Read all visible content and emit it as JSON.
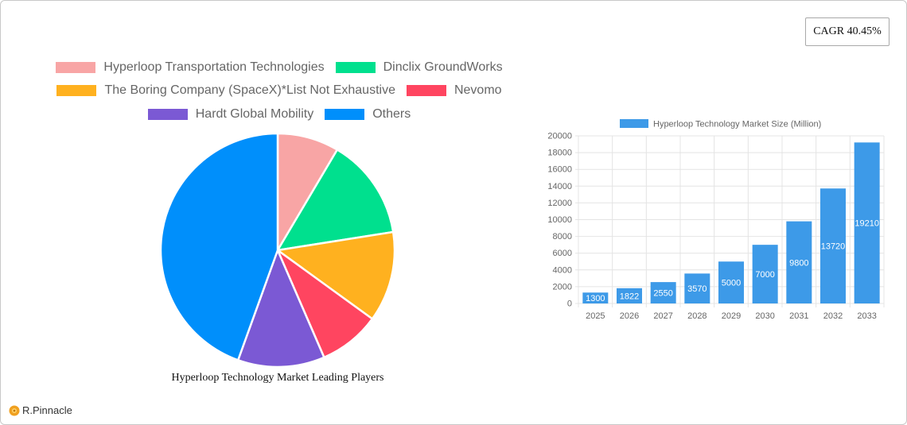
{
  "cagr_label": "CAGR 40.45%",
  "pie": {
    "title": "Hyperloop Technology Market Leading Players",
    "legend_rows": [
      [
        0,
        1
      ],
      [
        2,
        3
      ],
      [
        4,
        5
      ]
    ]
  },
  "bar": {
    "legend_label": "Hyperloop Technology Market Size (Million)"
  },
  "logo": {
    "text": "R.Pinnacle"
  },
  "chart_data": [
    {
      "type": "pie",
      "title": "Hyperloop Technology Market Leading Players",
      "labels": [
        "Hyperloop Transportation Technologies",
        "Dinclix GroundWorks",
        "The Boring Company (SpaceX)*List Not Exhaustive",
        "Nevomo",
        "Hardt Global Mobility",
        "Others"
      ],
      "values": [
        8.5,
        14,
        12.5,
        8.5,
        12,
        44.5
      ],
      "colors": [
        "#f8a5a5",
        "#00e08e",
        "#ffb11f",
        "#ff4560",
        "#7b59d4",
        "#008ffb"
      ],
      "legend_position": "top"
    },
    {
      "type": "bar",
      "categories": [
        "2025",
        "2026",
        "2027",
        "2028",
        "2029",
        "2030",
        "2031",
        "2032",
        "2033"
      ],
      "series": [
        {
          "name": "Hyperloop Technology Market Size (Million)",
          "values": [
            1300,
            1822,
            2550,
            3570,
            5000,
            7000,
            9800,
            13720,
            19210
          ],
          "color": "#3d9ae8"
        }
      ],
      "ylim": [
        0,
        20000
      ],
      "yticks": [
        0,
        2000,
        4000,
        6000,
        8000,
        10000,
        12000,
        14000,
        16000,
        18000,
        20000
      ],
      "grid": true,
      "data_labels": true,
      "legend_position": "top"
    }
  ]
}
